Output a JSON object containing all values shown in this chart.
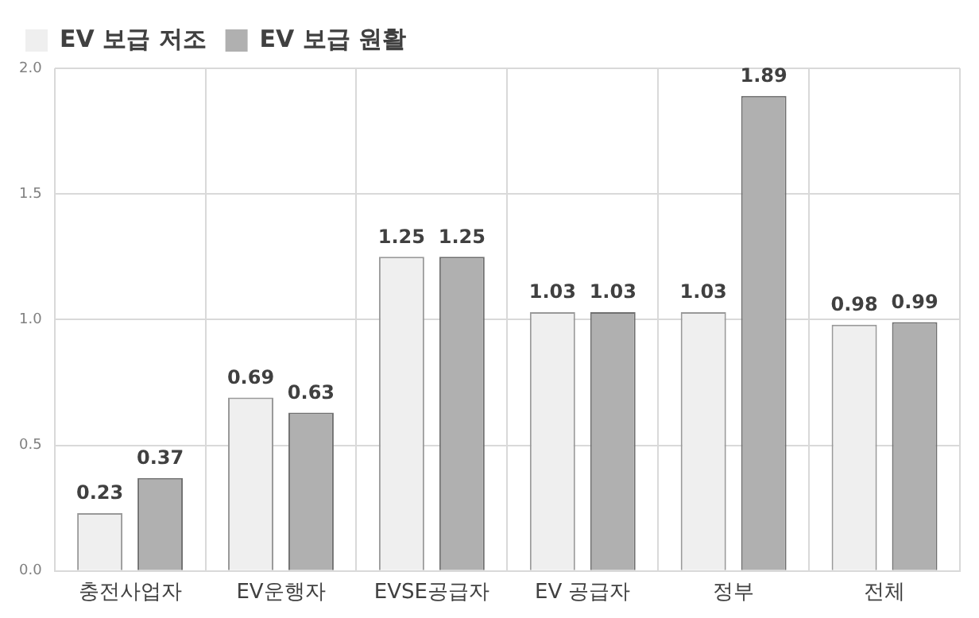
{
  "chart_data": {
    "type": "bar",
    "categories": [
      "충전사업자",
      "EV운행자",
      "EVSE공급자",
      "EV 공급자",
      "정부",
      "전체"
    ],
    "series": [
      {
        "name": "EV 보급 저조",
        "color": "#efefef",
        "values": [
          0.23,
          0.69,
          1.25,
          1.03,
          1.03,
          0.98
        ]
      },
      {
        "name": "EV 보급 원활",
        "color": "#b0b0b0",
        "values": [
          0.37,
          0.63,
          1.25,
          1.03,
          1.89,
          0.99
        ]
      }
    ],
    "ylim": [
      0,
      2
    ],
    "yticks": [
      {
        "value": 0,
        "label": "0.0"
      },
      {
        "value": 0.5,
        "label": "0.5"
      },
      {
        "value": 1,
        "label": "1.0"
      },
      {
        "value": 1.5,
        "label": "1.5"
      },
      {
        "value": 2,
        "label": "2.0"
      }
    ],
    "grid": true,
    "legend": "top left",
    "data_labels": true
  }
}
